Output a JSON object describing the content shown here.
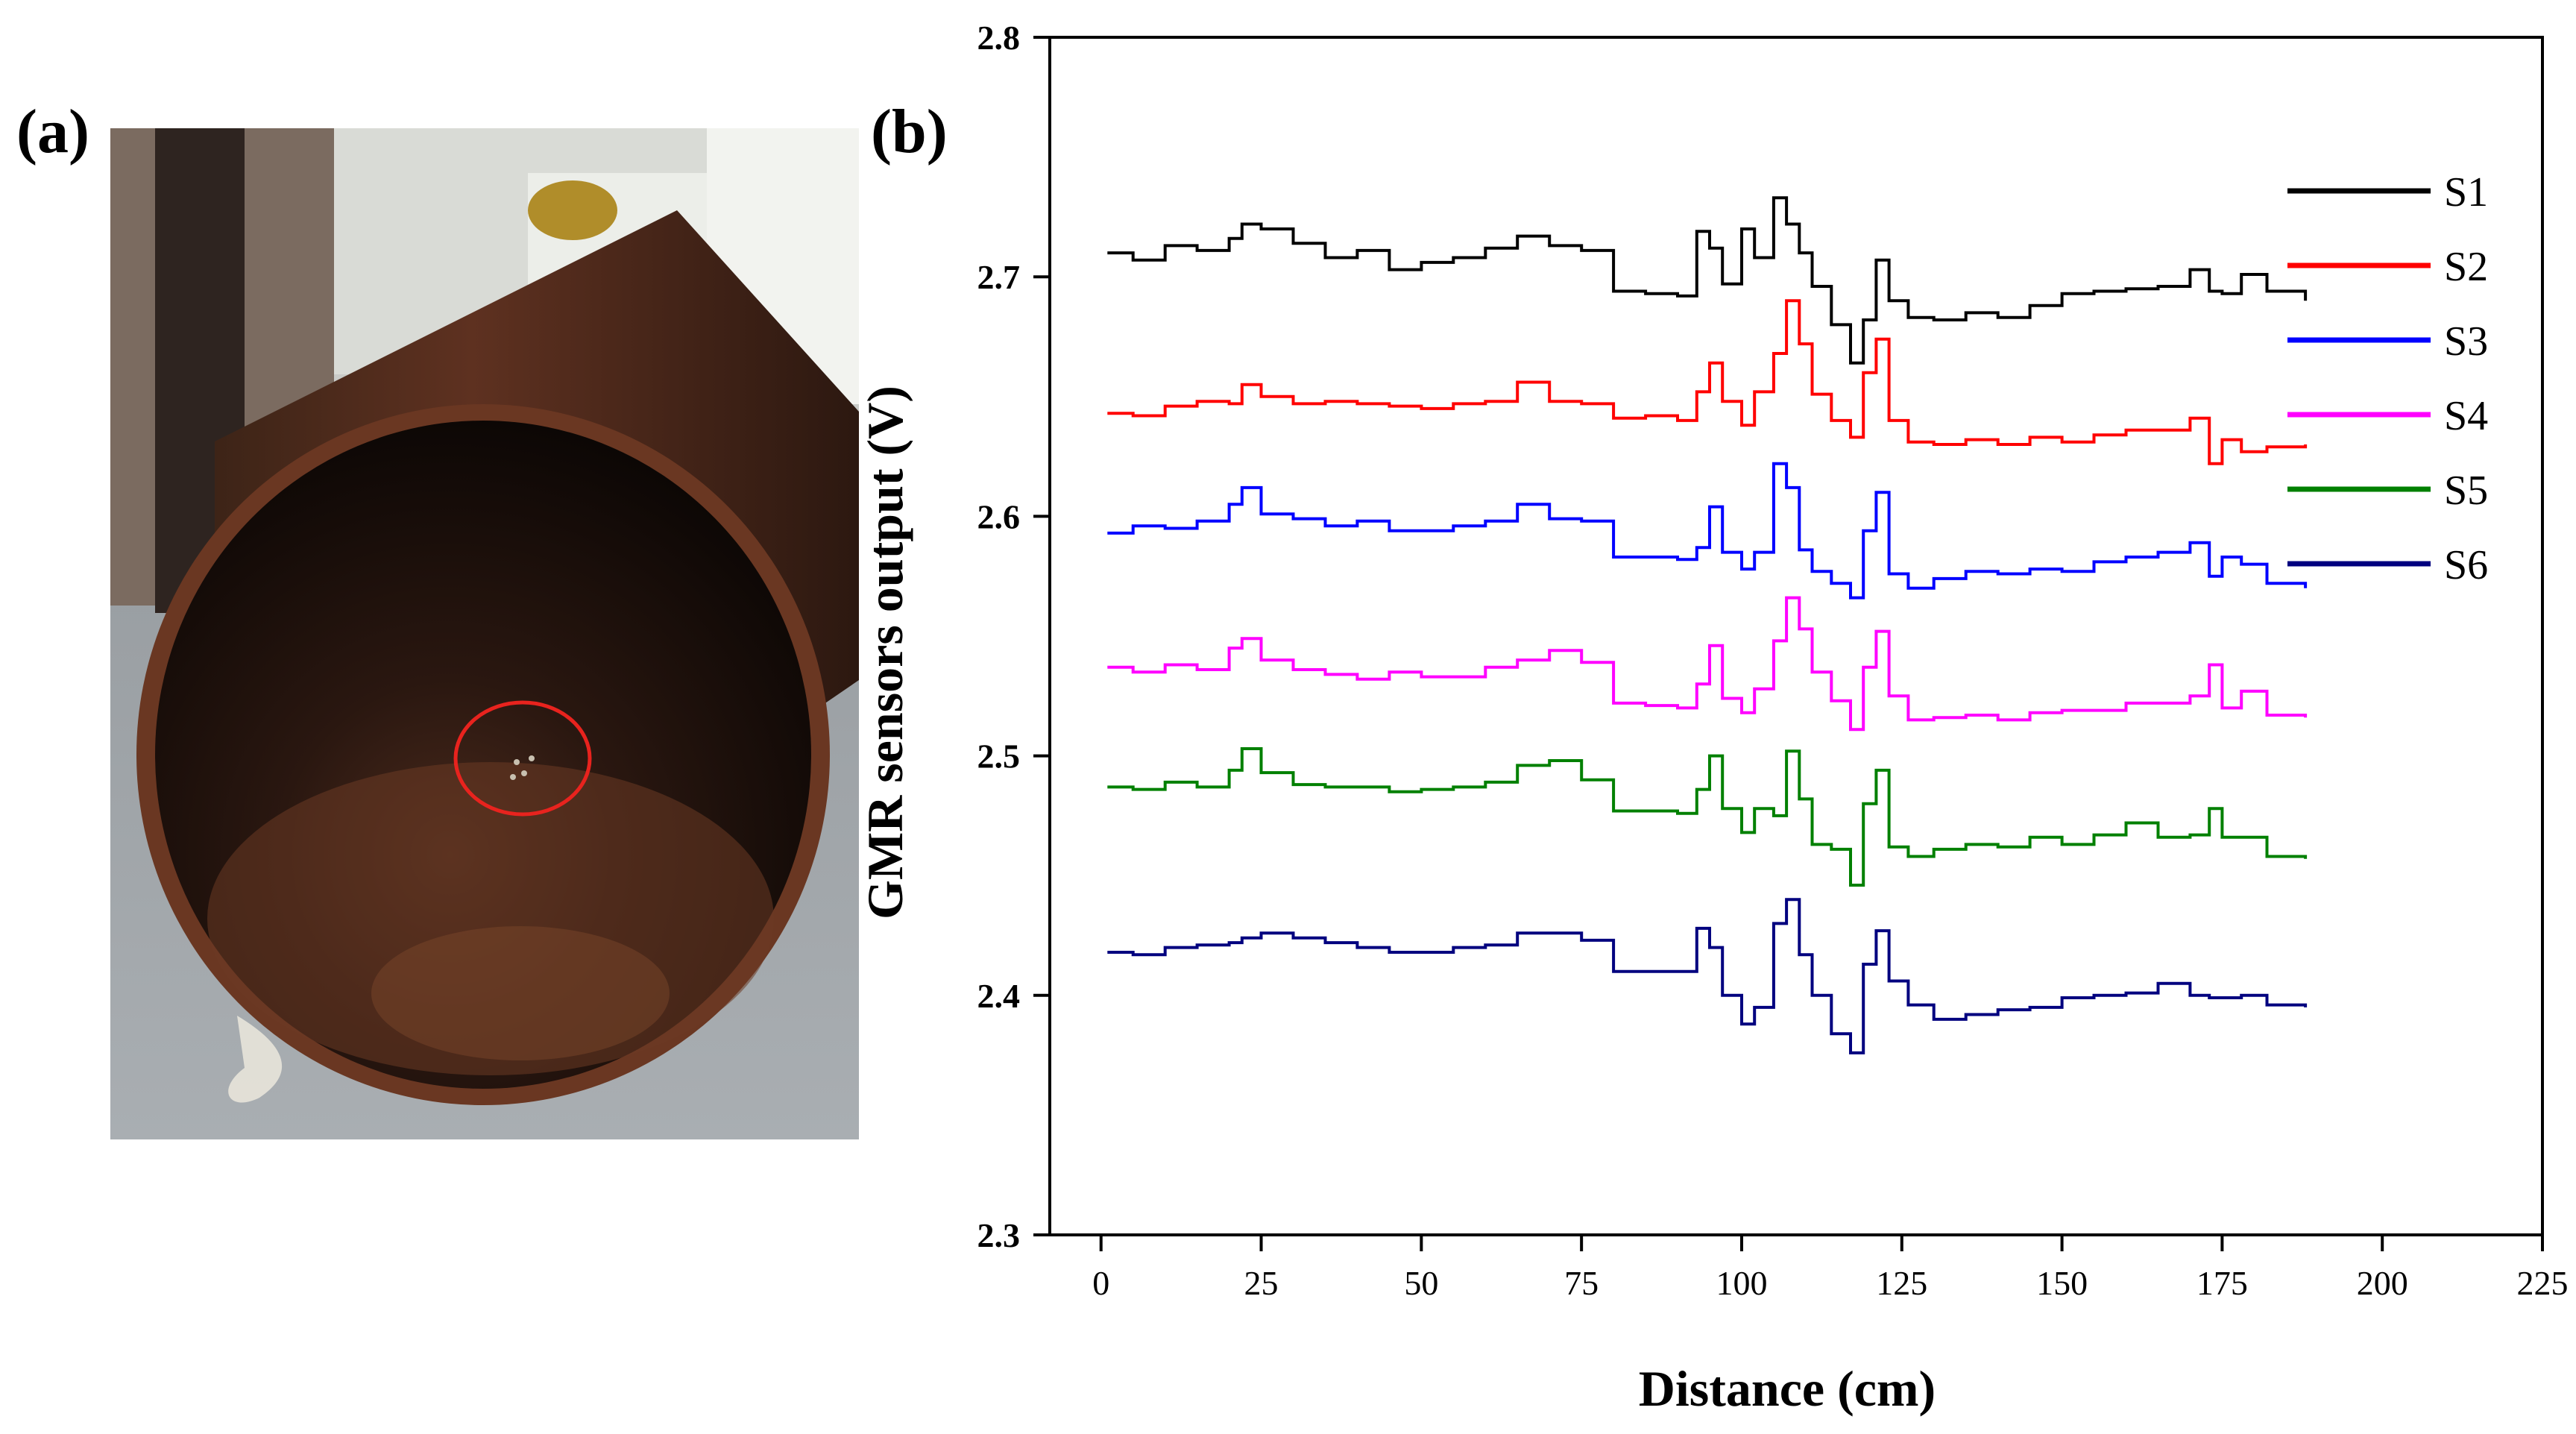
{
  "panels": {
    "a": {
      "label": "(a)"
    },
    "b": {
      "label": "(b)"
    }
  },
  "photo": {
    "description_icon": "steel-pipe-photo-icon",
    "annotation_color": "#e8231e"
  },
  "chart_data": {
    "type": "line",
    "title": "",
    "xlabel": "Distance (cm)",
    "ylabel": "GMR sensors output (V)",
    "xlim": [
      -8,
      225
    ],
    "ylim": [
      2.3,
      2.8
    ],
    "xticks": [
      0,
      25,
      50,
      75,
      100,
      125,
      150,
      175,
      200,
      225
    ],
    "yticks": [
      2.3,
      2.4,
      2.5,
      2.6,
      2.7,
      2.8
    ],
    "ytick_labels": [
      "2.3",
      "2.4",
      "2.5",
      "2.6",
      "2.7",
      "2.8"
    ],
    "grid": false,
    "legend_position": "top-right",
    "x": [
      1,
      5,
      10,
      15,
      20,
      22,
      25,
      30,
      35,
      40,
      45,
      50,
      55,
      60,
      65,
      70,
      75,
      80,
      85,
      90,
      93,
      95,
      97,
      100,
      102,
      105,
      107,
      109,
      111,
      114,
      117,
      119,
      121,
      123,
      126,
      130,
      135,
      140,
      145,
      150,
      155,
      160,
      165,
      170,
      173,
      175,
      178,
      182,
      188
    ],
    "series": [
      {
        "name": "S1",
        "color": "#000000",
        "values": [
          2.71,
          2.707,
          2.713,
          2.711,
          2.716,
          2.722,
          2.72,
          2.714,
          2.708,
          2.711,
          2.703,
          2.706,
          2.708,
          2.712,
          2.717,
          2.713,
          2.711,
          2.694,
          2.693,
          2.692,
          2.719,
          2.712,
          2.697,
          2.72,
          2.708,
          2.733,
          2.722,
          2.71,
          2.696,
          2.68,
          2.664,
          2.682,
          2.707,
          2.69,
          2.683,
          2.682,
          2.685,
          2.683,
          2.688,
          2.693,
          2.694,
          2.695,
          2.696,
          2.703,
          2.694,
          2.693,
          2.701,
          2.694,
          2.69
        ]
      },
      {
        "name": "S2",
        "color": "#ff0000",
        "values": [
          2.643,
          2.642,
          2.646,
          2.648,
          2.647,
          2.655,
          2.65,
          2.647,
          2.648,
          2.647,
          2.646,
          2.645,
          2.647,
          2.648,
          2.656,
          2.648,
          2.647,
          2.641,
          2.642,
          2.64,
          2.652,
          2.664,
          2.648,
          2.638,
          2.652,
          2.668,
          2.69,
          2.672,
          2.651,
          2.64,
          2.633,
          2.66,
          2.674,
          2.64,
          2.631,
          2.63,
          2.632,
          2.63,
          2.633,
          2.631,
          2.634,
          2.636,
          2.636,
          2.641,
          2.622,
          2.632,
          2.627,
          2.629,
          2.63
        ]
      },
      {
        "name": "S3",
        "color": "#0000ff",
        "values": [
          2.593,
          2.596,
          2.595,
          2.598,
          2.605,
          2.612,
          2.601,
          2.599,
          2.596,
          2.598,
          2.594,
          2.594,
          2.596,
          2.598,
          2.605,
          2.599,
          2.598,
          2.583,
          2.583,
          2.582,
          2.587,
          2.604,
          2.585,
          2.578,
          2.585,
          2.622,
          2.612,
          2.586,
          2.577,
          2.572,
          2.566,
          2.594,
          2.61,
          2.576,
          2.57,
          2.574,
          2.577,
          2.576,
          2.578,
          2.577,
          2.581,
          2.583,
          2.585,
          2.589,
          2.575,
          2.583,
          2.58,
          2.572,
          2.57
        ]
      },
      {
        "name": "S4",
        "color": "#ff00ff",
        "values": [
          2.537,
          2.535,
          2.538,
          2.536,
          2.545,
          2.549,
          2.54,
          2.536,
          2.534,
          2.532,
          2.535,
          2.533,
          2.533,
          2.537,
          2.54,
          2.544,
          2.539,
          2.522,
          2.521,
          2.52,
          2.53,
          2.546,
          2.524,
          2.518,
          2.528,
          2.548,
          2.566,
          2.553,
          2.535,
          2.523,
          2.511,
          2.537,
          2.552,
          2.525,
          2.515,
          2.516,
          2.517,
          2.515,
          2.518,
          2.519,
          2.519,
          2.522,
          2.522,
          2.525,
          2.538,
          2.52,
          2.527,
          2.517,
          2.516
        ]
      },
      {
        "name": "S5",
        "color": "#008000",
        "values": [
          2.487,
          2.486,
          2.489,
          2.487,
          2.494,
          2.503,
          2.493,
          2.488,
          2.487,
          2.487,
          2.485,
          2.486,
          2.487,
          2.489,
          2.496,
          2.498,
          2.49,
          2.477,
          2.477,
          2.476,
          2.486,
          2.5,
          2.478,
          2.468,
          2.478,
          2.475,
          2.502,
          2.482,
          2.463,
          2.461,
          2.446,
          2.48,
          2.494,
          2.462,
          2.458,
          2.461,
          2.463,
          2.462,
          2.466,
          2.463,
          2.467,
          2.472,
          2.466,
          2.467,
          2.478,
          2.466,
          2.466,
          2.458,
          2.457
        ]
      },
      {
        "name": "S6",
        "color": "#00007f",
        "values": [
          2.418,
          2.417,
          2.42,
          2.421,
          2.422,
          2.424,
          2.426,
          2.424,
          2.422,
          2.42,
          2.418,
          2.418,
          2.42,
          2.421,
          2.426,
          2.426,
          2.423,
          2.41,
          2.41,
          2.41,
          2.428,
          2.42,
          2.4,
          2.388,
          2.395,
          2.43,
          2.44,
          2.417,
          2.4,
          2.384,
          2.376,
          2.413,
          2.427,
          2.406,
          2.396,
          2.39,
          2.392,
          2.394,
          2.395,
          2.399,
          2.4,
          2.401,
          2.405,
          2.4,
          2.399,
          2.399,
          2.4,
          2.396,
          2.395
        ]
      }
    ]
  }
}
